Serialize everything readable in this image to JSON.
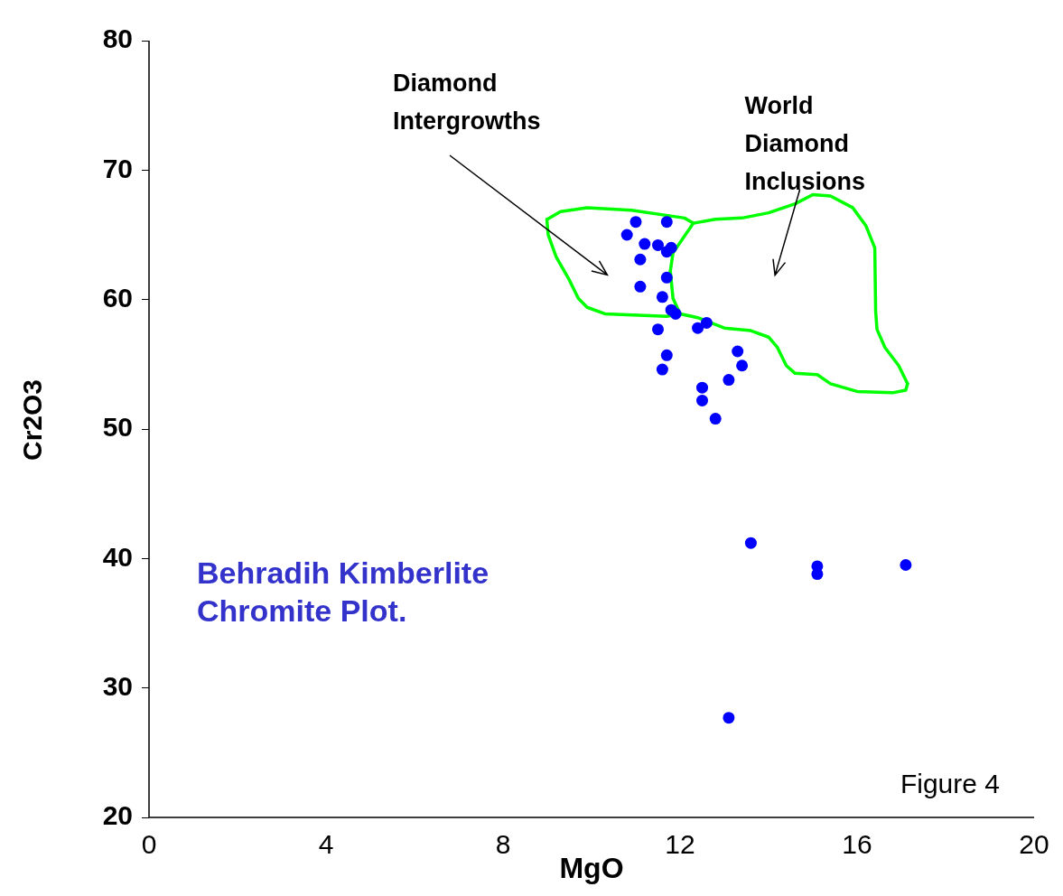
{
  "chart_data": {
    "type": "scatter",
    "title": "Behradih Kimberlite Chromite Plot.",
    "xlabel": "MgO",
    "ylabel": "Cr2O3",
    "xlim": [
      0,
      20
    ],
    "xticks": [
      0,
      4,
      8,
      12,
      16,
      20
    ],
    "ylim": [
      20,
      80
    ],
    "yticks": [
      20,
      30,
      40,
      50,
      60,
      70,
      80
    ],
    "grid": false,
    "legend": false,
    "marker": "circle",
    "annotations": [
      "Diamond Intergrowths",
      "World Diamond Inclusions",
      "Figure 4"
    ],
    "series": [
      {
        "color": "#0000ff",
        "x": [
          11.0,
          10.8,
          11.2,
          11.5,
          11.7,
          11.7,
          11.8,
          11.1,
          11.7,
          11.1,
          11.6,
          11.8,
          11.9,
          11.5,
          12.4,
          12.6,
          11.7,
          11.6,
          13.3,
          13.4,
          13.1,
          12.5,
          12.5,
          12.8,
          13.6,
          15.1,
          15.1,
          17.1,
          13.1
        ],
        "values": [
          66.0,
          65.0,
          64.3,
          64.2,
          66.0,
          63.7,
          64.0,
          63.1,
          61.7,
          61.0,
          60.2,
          59.2,
          58.9,
          57.7,
          57.8,
          58.2,
          55.7,
          54.6,
          56.0,
          54.9,
          53.8,
          53.2,
          52.2,
          50.8,
          41.2,
          39.4,
          38.8,
          39.5,
          27.7
        ]
      },
      {
        "type": "line",
        "color": "#00ff00",
        "marker": "none",
        "x": [
          9.0,
          9.3,
          9.9,
          10.9,
          12.1,
          12.3,
          12.8,
          13.4,
          14.0,
          14.6,
          15.0,
          15.4,
          15.9,
          16.2,
          16.4,
          16.42,
          16.45,
          16.63,
          16.94,
          17.14
        ],
        "values": [
          66.2,
          66.8,
          67.1,
          66.9,
          66.3,
          65.9,
          66.2,
          66.3,
          66.7,
          67.4,
          68.1,
          68.0,
          67.1,
          65.7,
          64.0,
          59.1,
          57.7,
          56.3,
          54.9,
          53.5
        ]
      },
      {
        "type": "line",
        "color": "#00ff00",
        "marker": "none",
        "x": [
          8.99,
          9.02,
          9.2,
          9.5,
          9.7,
          9.9,
          10.3,
          11.7,
          12.0,
          12.4,
          13.0,
          13.6,
          14.0,
          14.2,
          14.4,
          14.6,
          15.1,
          15.4,
          16.0,
          16.8,
          17.1,
          17.14
        ],
        "values": [
          66.2,
          65.0,
          63.3,
          61.5,
          60.1,
          59.4,
          58.9,
          58.7,
          58.9,
          58.6,
          57.8,
          57.6,
          57.1,
          56.3,
          54.9,
          54.3,
          54.2,
          53.5,
          52.9,
          52.8,
          53.0,
          53.5
        ]
      },
      {
        "type": "line",
        "color": "#00ff00",
        "marker": "none",
        "x": [
          11.78,
          11.84,
          12.3
        ],
        "values": [
          62.2,
          63.6,
          65.9
        ]
      },
      {
        "type": "line",
        "color": "#00ff00",
        "marker": "none",
        "x": [
          11.78,
          11.84,
          12.0
        ],
        "values": [
          62.2,
          60.1,
          58.9
        ]
      }
    ]
  }
}
